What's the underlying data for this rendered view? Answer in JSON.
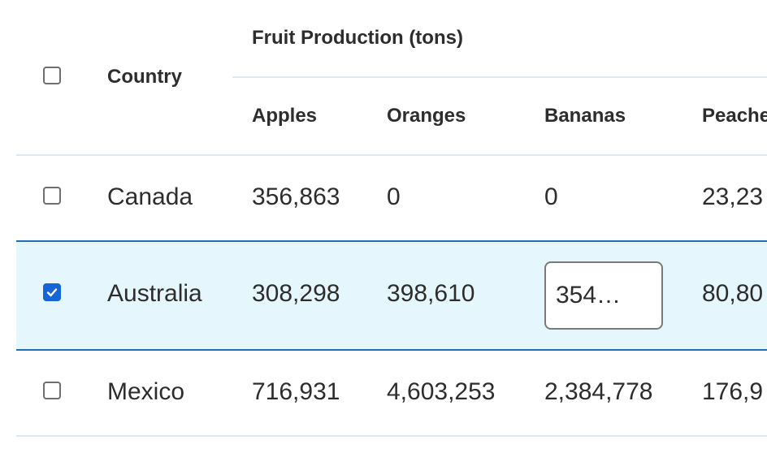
{
  "colors": {
    "selected_row_bg": "#e6f6fd",
    "selected_row_border": "#1f6fb8",
    "divider": "#dde7f2",
    "group_divider": "#dce9f5",
    "checkbox_checked": "#1565d8"
  },
  "header": {
    "country_label": "Country",
    "group_label": "Fruit Production (tons)",
    "columns": [
      "Apples",
      "Oranges",
      "Bananas",
      "Peaches"
    ],
    "select_all_checked": false
  },
  "rows": [
    {
      "country": "Canada",
      "apples": "356,863",
      "oranges": "0",
      "bananas": "0",
      "peaches": "23,23",
      "checked": false
    },
    {
      "country": "Australia",
      "apples": "308,298",
      "oranges": "398,610",
      "bananas": "354…",
      "peaches": "80,80",
      "checked": true
    },
    {
      "country": "Mexico",
      "apples": "716,931",
      "oranges": "4,603,253",
      "bananas": "2,384,778",
      "peaches": "176,9",
      "checked": false
    }
  ]
}
